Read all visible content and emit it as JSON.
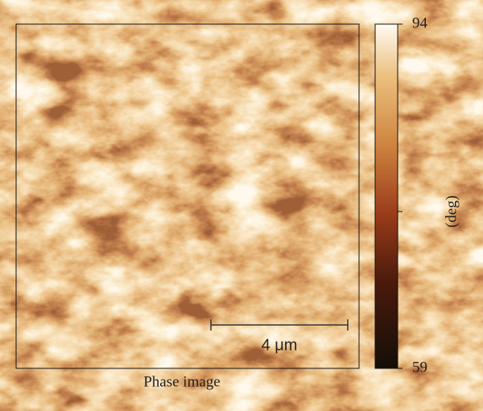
{
  "image": {
    "caption": "Phase image",
    "scale_bar": "4 μm"
  },
  "colorbar": {
    "label": "(deg)",
    "lim": [
      59,
      94
    ],
    "ticks": [
      59,
      94
    ]
  }
}
